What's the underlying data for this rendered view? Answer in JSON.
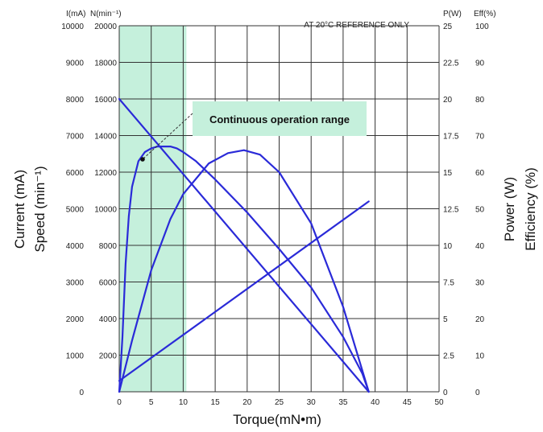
{
  "chart_data": {
    "type": "line",
    "title": "",
    "note": "AT 20°C REFERENCE ONLY",
    "xlabel": "Torque(mN•m)",
    "xlim": [
      0,
      50
    ],
    "x_ticks": [
      "0",
      "5",
      "10",
      "15",
      "20",
      "25",
      "30",
      "35",
      "40",
      "45",
      "50"
    ],
    "left_axis_title_1": "Current (mA)",
    "left_axis_title_2": "Speed (min⁻¹)",
    "right_axis_title_1": "Power (W)",
    "right_axis_title_2": "Efficiency (%)",
    "current_axis": {
      "header": "I(mA)",
      "ylim": [
        0,
        10000
      ],
      "ticks": [
        "0",
        "1000",
        "2000",
        "3000",
        "4000",
        "5000",
        "6000",
        "7000",
        "8000",
        "9000",
        "10000"
      ]
    },
    "speed_axis": {
      "header": "N(min⁻¹)",
      "ylim": [
        0,
        20000
      ],
      "ticks": [
        "",
        "2000",
        "4000",
        "6000",
        "8000",
        "10000",
        "12000",
        "14000",
        "16000",
        "18000",
        "20000"
      ]
    },
    "power_axis": {
      "header": "P(W)",
      "ylim": [
        0,
        25
      ],
      "ticks": [
        "0",
        "2.5",
        "5",
        "7.5",
        "10",
        "12.5",
        "15",
        "17.5",
        "20",
        "22.5",
        "25"
      ]
    },
    "efficiency_axis": {
      "header": "Eff(%)",
      "ylim": [
        0,
        100
      ],
      "ticks": [
        "0",
        "10",
        "20",
        "30",
        "40",
        "50",
        "60",
        "70",
        "80",
        "90",
        "100"
      ]
    },
    "continuous_range": {
      "label": "Continuous operation range",
      "x_range": [
        0,
        10.5
      ]
    },
    "series": [
      {
        "axis": "speed",
        "x": [
          0,
          39
        ],
        "values": [
          16000,
          0
        ]
      },
      {
        "axis": "current",
        "x": [
          0,
          39
        ],
        "values": [
          300,
          5200
        ]
      },
      {
        "axis": "power",
        "x": [
          0,
          2,
          5,
          8,
          10,
          14,
          17,
          19.5,
          22,
          25,
          30,
          35,
          39
        ],
        "values": [
          0,
          3.5,
          8.3,
          11.8,
          13.5,
          15.6,
          16.3,
          16.5,
          16.2,
          15.0,
          11.5,
          5.8,
          0
        ]
      },
      {
        "axis": "efficiency",
        "x": [
          0,
          0.5,
          1,
          1.5,
          2,
          3,
          4,
          5,
          6,
          7,
          8,
          9,
          10,
          12,
          15,
          20,
          25,
          30,
          35,
          38,
          39
        ],
        "values": [
          0,
          15,
          35,
          48,
          56,
          63,
          65.5,
          66.5,
          67,
          67,
          67,
          66.5,
          65.5,
          63,
          58,
          49,
          39,
          28.5,
          15,
          5,
          0
        ]
      }
    ]
  }
}
